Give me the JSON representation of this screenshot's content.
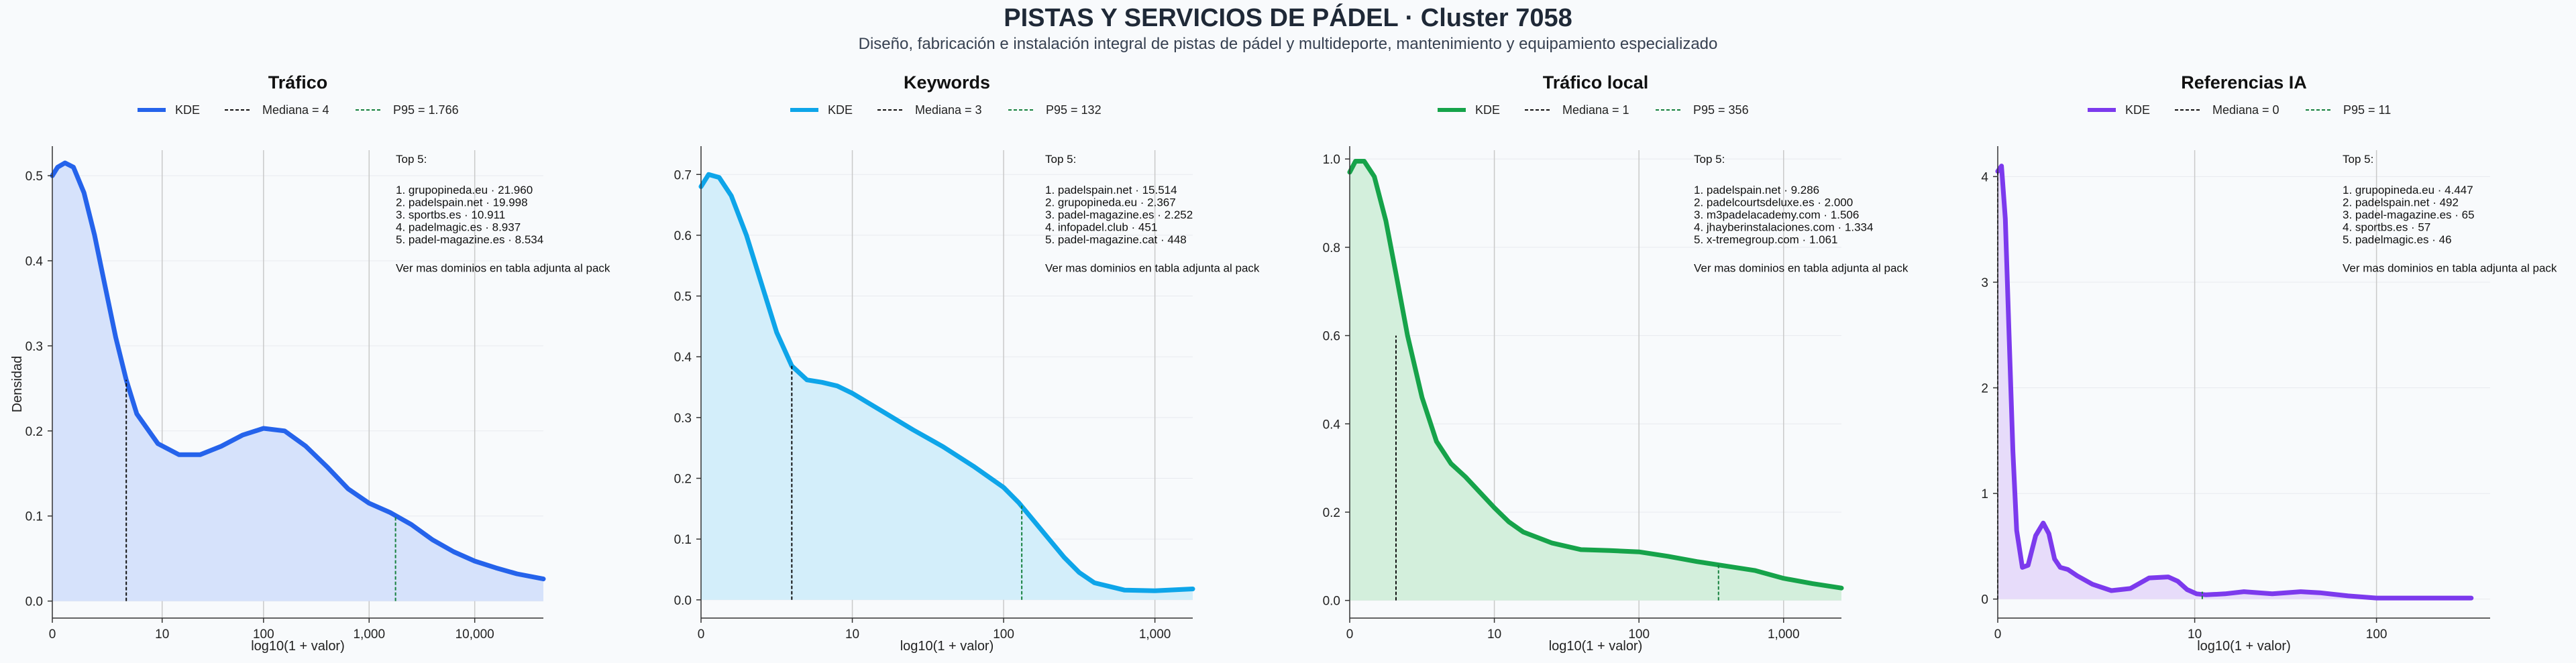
{
  "header": {
    "title": "PISTAS Y SERVICIOS DE PÁDEL · Cluster 7058",
    "subtitle": "Diseño, fabricación e instalación integral de pistas de pádel y multideporte, mantenimiento y equipamiento especializado"
  },
  "chart_data": [
    {
      "type": "area",
      "title": "Tráfico",
      "xlabel": "log10(1 + valor)",
      "ylabel": "Densidad",
      "color": "#2563eb",
      "fill": "#d6e2fb",
      "xlim": [
        0,
        4.65
      ],
      "ylim": [
        -0.02,
        0.53
      ],
      "x_ticks": [
        {
          "v": 0,
          "label": "0"
        },
        {
          "v": 1.04,
          "label": "10"
        },
        {
          "v": 2.0,
          "label": "100"
        },
        {
          "v": 3.0,
          "label": "1,000"
        },
        {
          "v": 4.0,
          "label": "10,000"
        }
      ],
      "y_ticks": [
        {
          "v": 0,
          "label": "0.0"
        },
        {
          "v": 0.1,
          "label": "0.1"
        },
        {
          "v": 0.2,
          "label": "0.2"
        },
        {
          "v": 0.3,
          "label": "0.3"
        },
        {
          "v": 0.4,
          "label": "0.4"
        },
        {
          "v": 0.5,
          "label": "0.5"
        }
      ],
      "kde_x": [
        0.0,
        0.05,
        0.12,
        0.2,
        0.3,
        0.4,
        0.5,
        0.6,
        0.7,
        0.8,
        1.0,
        1.2,
        1.4,
        1.6,
        1.8,
        2.0,
        2.2,
        2.4,
        2.6,
        2.8,
        3.0,
        3.2,
        3.4,
        3.6,
        3.8,
        4.0,
        4.2,
        4.4,
        4.65
      ],
      "kde_y": [
        0.5,
        0.51,
        0.515,
        0.51,
        0.48,
        0.43,
        0.37,
        0.31,
        0.26,
        0.22,
        0.185,
        0.172,
        0.172,
        0.182,
        0.195,
        0.203,
        0.2,
        0.182,
        0.158,
        0.132,
        0.115,
        0.104,
        0.09,
        0.072,
        0.058,
        0.047,
        0.039,
        0.032,
        0.026
      ],
      "median": {
        "x": 0.7,
        "y": 0.26,
        "label": "Mediana = 4"
      },
      "p95": {
        "x": 3.25,
        "y": 0.1,
        "label": "P95 = 1.766"
      },
      "kde_label": "KDE",
      "top_title": "Top 5:",
      "top": [
        "1. grupopineda.eu · 21.960",
        "2. padelspain.net · 19.998",
        "3. sportbs.es · 10.911",
        "4. padelmagic.es · 8.937",
        "5. padel-magazine.es · 8.534"
      ],
      "top_note": "Ver mas dominios en tabla adjunta al pack"
    },
    {
      "type": "area",
      "title": "Keywords",
      "xlabel": "log10(1 + valor)",
      "ylabel": "",
      "color": "#0ea5e9",
      "fill": "#d3eefa",
      "xlim": [
        0,
        3.25
      ],
      "ylim": [
        -0.03,
        0.74
      ],
      "x_ticks": [
        {
          "v": 0,
          "label": "0"
        },
        {
          "v": 1.0,
          "label": "10"
        },
        {
          "v": 2.0,
          "label": "100"
        },
        {
          "v": 3.0,
          "label": "1,000"
        }
      ],
      "y_ticks": [
        {
          "v": 0,
          "label": "0.0"
        },
        {
          "v": 0.1,
          "label": "0.1"
        },
        {
          "v": 0.2,
          "label": "0.2"
        },
        {
          "v": 0.3,
          "label": "0.3"
        },
        {
          "v": 0.4,
          "label": "0.4"
        },
        {
          "v": 0.5,
          "label": "0.5"
        },
        {
          "v": 0.6,
          "label": "0.6"
        },
        {
          "v": 0.7,
          "label": "0.7"
        }
      ],
      "kde_x": [
        0.0,
        0.05,
        0.12,
        0.2,
        0.3,
        0.4,
        0.5,
        0.6,
        0.7,
        0.8,
        0.9,
        1.0,
        1.1,
        1.2,
        1.4,
        1.6,
        1.8,
        2.0,
        2.1,
        2.2,
        2.3,
        2.4,
        2.5,
        2.6,
        2.8,
        3.0,
        3.25
      ],
      "kde_y": [
        0.68,
        0.7,
        0.695,
        0.665,
        0.6,
        0.52,
        0.44,
        0.385,
        0.362,
        0.358,
        0.352,
        0.34,
        0.325,
        0.31,
        0.28,
        0.252,
        0.22,
        0.185,
        0.16,
        0.13,
        0.1,
        0.07,
        0.045,
        0.028,
        0.016,
        0.015,
        0.018
      ],
      "median": {
        "x": 0.6,
        "y": 0.385,
        "label": "Mediana = 3"
      },
      "p95": {
        "x": 2.12,
        "y": 0.155,
        "label": "P95 = 132"
      },
      "kde_label": "KDE",
      "top_title": "Top 5:",
      "top": [
        "1. padelspain.net · 15.514",
        "2. grupopineda.eu · 2.367",
        "3. padel-magazine.es · 2.252",
        "4. infopadel.club · 451",
        "5. padel-magazine.cat · 448"
      ],
      "top_note": "Ver mas dominios en tabla adjunta al pack"
    },
    {
      "type": "area",
      "title": "Tráfico local",
      "xlabel": "log10(1 + valor)",
      "ylabel": "",
      "color": "#16a34a",
      "fill": "#d3efdc",
      "xlim": [
        0,
        3.4
      ],
      "ylim": [
        -0.04,
        1.02
      ],
      "x_ticks": [
        {
          "v": 0,
          "label": "0"
        },
        {
          "v": 1.0,
          "label": "10"
        },
        {
          "v": 2.0,
          "label": "100"
        },
        {
          "v": 3.0,
          "label": "1,000"
        }
      ],
      "y_ticks": [
        {
          "v": 0,
          "label": "0.0"
        },
        {
          "v": 0.2,
          "label": "0.2"
        },
        {
          "v": 0.4,
          "label": "0.4"
        },
        {
          "v": 0.6,
          "label": "0.6"
        },
        {
          "v": 0.8,
          "label": "0.8"
        },
        {
          "v": 1.0,
          "label": "1.0"
        }
      ],
      "kde_x": [
        0.0,
        0.04,
        0.1,
        0.17,
        0.25,
        0.32,
        0.4,
        0.5,
        0.6,
        0.7,
        0.8,
        0.9,
        1.0,
        1.1,
        1.2,
        1.4,
        1.6,
        1.8,
        2.0,
        2.2,
        2.4,
        2.6,
        2.8,
        3.0,
        3.2,
        3.4
      ],
      "kde_y": [
        0.97,
        0.995,
        0.995,
        0.96,
        0.86,
        0.74,
        0.6,
        0.46,
        0.36,
        0.31,
        0.28,
        0.245,
        0.21,
        0.178,
        0.155,
        0.13,
        0.115,
        0.113,
        0.11,
        0.1,
        0.088,
        0.078,
        0.068,
        0.05,
        0.038,
        0.028
      ],
      "median": {
        "x": 0.32,
        "y": 0.6,
        "label": "Mediana = 1"
      },
      "p95": {
        "x": 2.55,
        "y": 0.085,
        "label": "P95 = 356"
      },
      "kde_label": "KDE",
      "top_title": "Top 5:",
      "top": [
        "1. padelspain.net · 9.286",
        "2. padelcourtsdeluxe.es · 2.000",
        "3. m3padelacademy.com · 1.506",
        "4. jhayberinstalaciones.com · 1.334",
        "5. x-tremegroup.com · 1.061"
      ],
      "top_note": "Ver mas dominios en tabla adjunta al pack"
    },
    {
      "type": "area",
      "title": "Referencias IA",
      "xlabel": "log10(1 + valor)",
      "ylabel": "",
      "color": "#7c3aed",
      "fill": "#e7dcfa",
      "xlim": [
        0,
        2.6
      ],
      "ylim": [
        -0.18,
        4.25
      ],
      "x_ticks": [
        {
          "v": 0,
          "label": "0"
        },
        {
          "v": 1.04,
          "label": "10"
        },
        {
          "v": 2.0,
          "label": "100"
        }
      ],
      "y_ticks": [
        {
          "v": 0,
          "label": "0"
        },
        {
          "v": 1,
          "label": "1"
        },
        {
          "v": 2,
          "label": "2"
        },
        {
          "v": 3,
          "label": "3"
        },
        {
          "v": 4,
          "label": "4"
        }
      ],
      "kde_x": [
        0.0,
        0.02,
        0.04,
        0.06,
        0.08,
        0.1,
        0.13,
        0.16,
        0.2,
        0.24,
        0.27,
        0.3,
        0.33,
        0.37,
        0.42,
        0.5,
        0.6,
        0.7,
        0.8,
        0.9,
        0.95,
        1.0,
        1.05,
        1.1,
        1.2,
        1.3,
        1.45,
        1.6,
        1.7,
        1.85,
        2.0,
        2.2,
        2.5
      ],
      "kde_y": [
        4.05,
        4.1,
        3.6,
        2.5,
        1.4,
        0.65,
        0.3,
        0.32,
        0.6,
        0.72,
        0.62,
        0.38,
        0.3,
        0.28,
        0.22,
        0.14,
        0.08,
        0.1,
        0.2,
        0.21,
        0.17,
        0.09,
        0.05,
        0.04,
        0.05,
        0.07,
        0.05,
        0.07,
        0.06,
        0.03,
        0.01,
        0.01,
        0.01
      ],
      "median": {
        "x": 0.0,
        "y": 4.05,
        "label": "Mediana = 0"
      },
      "p95": {
        "x": 1.08,
        "y": 0.07,
        "label": "P95 = 11"
      },
      "kde_label": "KDE",
      "top_title": "Top 5:",
      "top": [
        "1. grupopineda.eu · 4.447",
        "2. padelspain.net · 492",
        "3. padel-magazine.es · 65",
        "4. sportbs.es · 57",
        "5. padelmagic.es · 46"
      ],
      "top_note": "Ver mas dominios en tabla adjunta al pack"
    }
  ]
}
